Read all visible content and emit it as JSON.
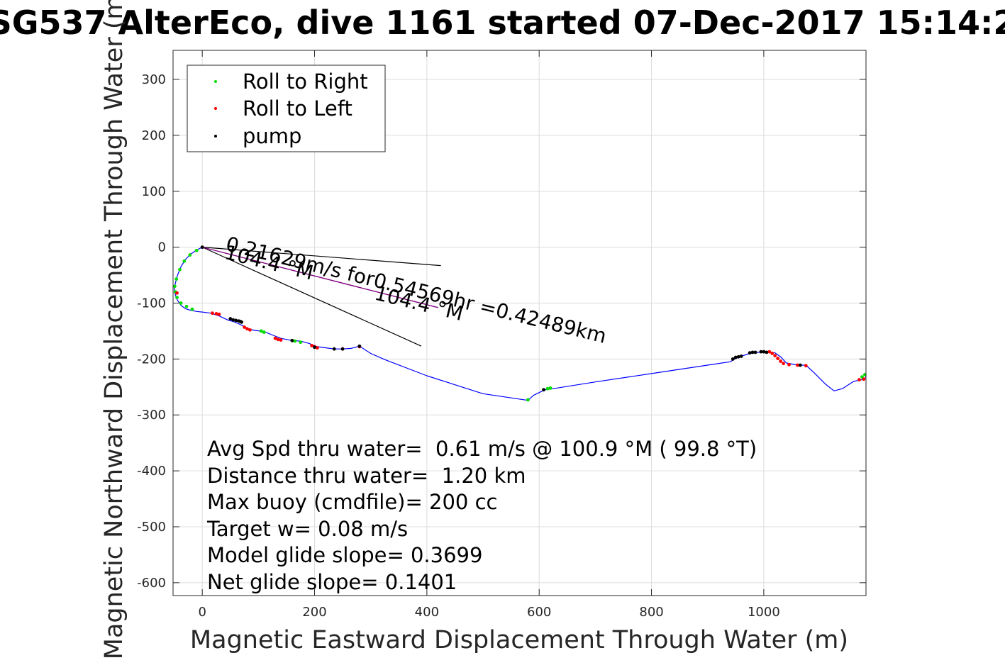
{
  "chart_data": {
    "type": "scatter",
    "title": "SG537 AlterEco, dive 1161 started 07-Dec-2017 15:14:2",
    "xlabel": "Magnetic Eastward Displacement Through Water (m)",
    "ylabel": "Magnetic Northward Displacement Through Water (m)",
    "xlim": [
      -52,
      1182
    ],
    "ylim": [
      -623,
      352
    ],
    "xticks": [
      0,
      200,
      400,
      600,
      800,
      1000
    ],
    "yticks": [
      300,
      200,
      100,
      0,
      -100,
      -200,
      -300,
      -400,
      -500,
      -600
    ],
    "grid": true,
    "legend": {
      "placement": "top-left",
      "entries": [
        {
          "label": "Roll to Right",
          "color": "#00dd00"
        },
        {
          "label": "Roll to Left",
          "color": "#ff0000"
        },
        {
          "label": "pump",
          "color": "#000000"
        }
      ]
    },
    "track": {
      "color": "#0000ff",
      "x": [
        0,
        -10,
        -20,
        -30,
        -38,
        -44,
        -48,
        -50,
        -48,
        -44,
        -38,
        -30,
        -20,
        -10,
        0,
        15,
        30,
        45,
        55,
        65,
        75,
        85,
        95,
        110,
        125,
        140,
        160,
        175,
        190,
        205,
        220,
        235,
        250,
        265,
        280,
        300,
        325,
        400,
        500,
        580,
        590,
        610,
        625,
        700,
        800,
        900,
        940,
        950,
        960,
        975,
        990,
        1005,
        1020,
        1030,
        1040,
        1060,
        1075,
        1090,
        1110,
        1125,
        1140,
        1160,
        1180
      ],
      "y": [
        0,
        -5,
        -12,
        -22,
        -35,
        -50,
        -65,
        -75,
        -85,
        -95,
        -104,
        -110,
        -113,
        -115,
        -116,
        -118,
        -123,
        -130,
        -133,
        -137,
        -142,
        -147,
        -149,
        -151,
        -157,
        -163,
        -167,
        -168,
        -172,
        -178,
        -180,
        -182,
        -182,
        -181,
        -177,
        -190,
        -201,
        -230,
        -262,
        -274,
        -265,
        -255,
        -253,
        -241,
        -226,
        -211,
        -205,
        -199,
        -195,
        -190,
        -188,
        -187,
        -189,
        -196,
        -207,
        -211,
        -211,
        -225,
        -245,
        -257,
        -253,
        -240,
        -236
      ]
    },
    "track_closing": {
      "color": "#ff00ff",
      "x": [
        1180,
        1182
      ],
      "y": [
        -236,
        -230
      ]
    },
    "heading_line": {
      "color": "#800080",
      "x": [
        0,
        420
      ],
      "y": [
        0,
        -108
      ]
    },
    "bearing_lines": {
      "color": "#000000",
      "x1": [
        0,
        0
      ],
      "y1": [
        0,
        0
      ],
      "x2": [
        425,
        390
      ],
      "y2": [
        -33,
        -177
      ]
    },
    "series": [
      {
        "name": "Roll to Right",
        "color": "#00dd00",
        "x": [
          -10,
          -22,
          -32,
          -40,
          -46,
          -49,
          -48,
          -45,
          -38,
          -28,
          -18,
          105,
          110,
          160,
          165,
          175,
          580,
          615,
          620,
          1175,
          1180
        ],
        "y": [
          -6,
          -14,
          -25,
          -40,
          -57,
          -70,
          -80,
          -90,
          -100,
          -106,
          -111,
          -150,
          -152,
          -167,
          -168,
          -170,
          -273,
          -253,
          -252,
          -232,
          -228
        ]
      },
      {
        "name": "Roll to Left",
        "color": "#ff0000",
        "x": [
          -45,
          18,
          25,
          30,
          75,
          80,
          85,
          130,
          135,
          140,
          195,
          200,
          205,
          250,
          280,
          1010,
          1015,
          1020,
          1025,
          1030,
          1035,
          1045,
          1060,
          1075,
          1170,
          1178
        ],
        "y": [
          -82,
          -118,
          -119,
          -120,
          -143,
          -146,
          -148,
          -163,
          -165,
          -166,
          -176,
          -178,
          -180,
          -182,
          -178,
          -187,
          -190,
          -194,
          -199,
          -204,
          -208,
          -210,
          -211,
          -212,
          -237,
          -236
        ]
      },
      {
        "name": "pump",
        "color": "#000000",
        "x": [
          0,
          50,
          55,
          60,
          65,
          68,
          70,
          160,
          200,
          235,
          250,
          280,
          608,
          945,
          950,
          955,
          960,
          975,
          980,
          985,
          995,
          1000,
          1005,
          1065
        ],
        "y": [
          0,
          -128,
          -130,
          -131,
          -132,
          -133,
          -134,
          -167,
          -179,
          -182,
          -182,
          -177,
          -255,
          -200,
          -197,
          -196,
          -195,
          -189,
          -188,
          -188,
          -187,
          -187,
          -188,
          -211
        ]
      }
    ],
    "annotations": [
      {
        "text": "0.21629m/s for0.54569hr =0.42489km",
        "x": 40,
        "y": -5,
        "rotation": 13.8
      },
      {
        "text": "104.4 °M",
        "x": 38,
        "y": -20,
        "rotation": 13.8
      },
      {
        "text": "104.4 °M",
        "x": 305,
        "y": -93,
        "rotation": 13.8
      }
    ],
    "stats": [
      "Avg Spd thru water=  0.61 m/s @ 100.9 °M ( 99.8 °T)",
      "Distance thru water=  1.20 km",
      "Max buoy (cmdfile)= 200 cc",
      "Target w= 0.08 m/s",
      "Model glide slope= 0.3699",
      "Net glide slope= 0.1401"
    ]
  }
}
